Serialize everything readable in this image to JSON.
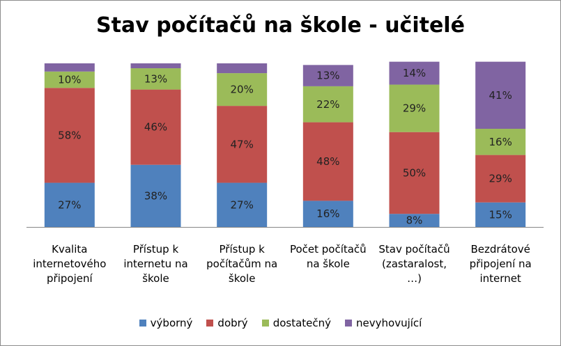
{
  "chart_data": {
    "type": "bar",
    "stacked": true,
    "title": "Stav počítačů na škole - učitelé",
    "categories": [
      [
        "Kvalita",
        "internetového",
        "připojení"
      ],
      [
        "Přístup k",
        "internetu na",
        "škole"
      ],
      [
        "Přístup k",
        "počítačům na",
        "škole"
      ],
      [
        "Počet počítačů",
        "na škole"
      ],
      [
        "Stav počítačů",
        "(zastaralost,",
        "…)"
      ],
      [
        "Bezdrátové",
        "připojení na",
        "internet"
      ]
    ],
    "series": [
      {
        "name": "výborný",
        "color": "#4f81bd",
        "values": [
          27,
          38,
          27,
          16,
          8,
          15
        ],
        "labels": [
          "27%",
          "38%",
          "27%",
          "16%",
          "8%",
          "15%"
        ]
      },
      {
        "name": "dobrý",
        "color": "#c0504d",
        "values": [
          58,
          46,
          47,
          48,
          50,
          29
        ],
        "labels": [
          "58%",
          "46%",
          "47%",
          "48%",
          "50%",
          "29%"
        ]
      },
      {
        "name": "dostatečný",
        "color": "#9bbb59",
        "values": [
          10,
          13,
          20,
          22,
          29,
          16
        ],
        "labels": [
          "10%",
          "13%",
          "20%",
          "22%",
          "29%",
          "16%"
        ]
      },
      {
        "name": "nevyhovující",
        "color": "#8064a2",
        "values": [
          5,
          3,
          6,
          13,
          14,
          41
        ],
        "labels": [
          "",
          "",
          "",
          "13%",
          "14%",
          "41%"
        ]
      }
    ],
    "ylim": [
      0,
      100
    ],
    "grid": false,
    "legend": "bottom"
  }
}
